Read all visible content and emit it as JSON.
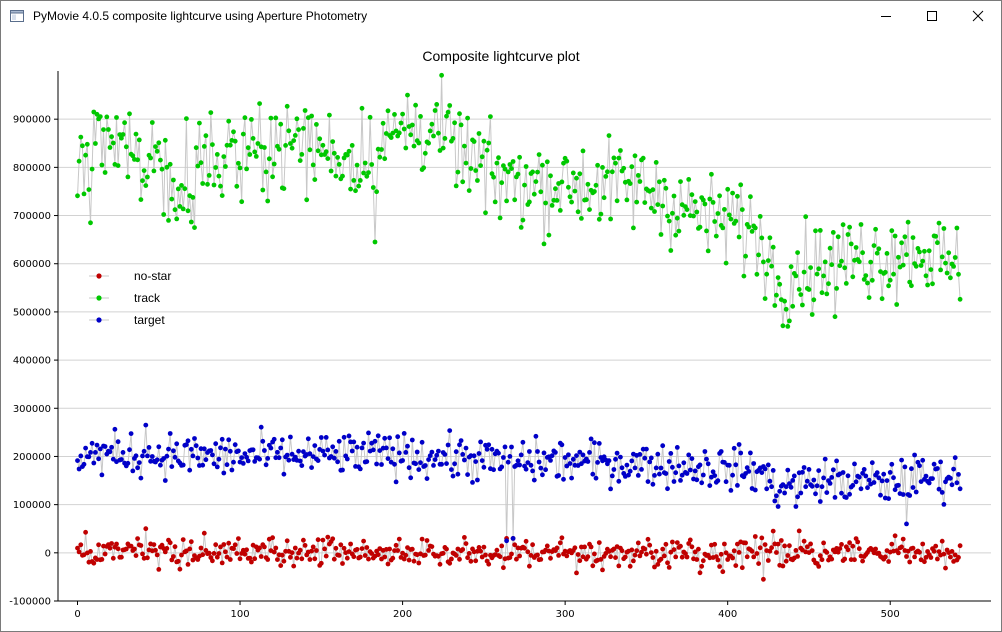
{
  "window": {
    "title": "PyMovie 4.0.5 composite lightcurve using Aperture Photometry",
    "icon": "app-window-icon"
  },
  "chart_data": {
    "type": "scatter",
    "title": "Composite lightcurve plot",
    "xlabel": "",
    "ylabel": "",
    "xlim": [
      -12,
      562
    ],
    "ylim": [
      -100000,
      1000000
    ],
    "x_ticks": [
      0,
      100,
      200,
      300,
      400,
      500
    ],
    "y_ticks": [
      -100000,
      0,
      100000,
      200000,
      300000,
      400000,
      500000,
      600000,
      700000,
      800000,
      900000
    ],
    "grid": "horizontal",
    "legend_position": "left",
    "n_points": 544,
    "series": [
      {
        "name": "no-star",
        "color": "#c00000",
        "anchors": [
          [
            0,
            0
          ],
          [
            100,
            0
          ],
          [
            200,
            0
          ],
          [
            300,
            0
          ],
          [
            400,
            0
          ],
          [
            500,
            0
          ],
          [
            543,
            0
          ]
        ],
        "scatter": 15000,
        "notable_points": [
          [
            42,
            50000
          ],
          [
            264,
            30000
          ],
          [
            268,
            30000
          ],
          [
            422,
            -55000
          ],
          [
            428,
            45000
          ]
        ]
      },
      {
        "name": "track",
        "color": "#00c800",
        "anchors": [
          [
            0,
            800000
          ],
          [
            20,
            845000
          ],
          [
            50,
            815000
          ],
          [
            60,
            770000
          ],
          [
            80,
            810000
          ],
          [
            100,
            840000
          ],
          [
            140,
            850000
          ],
          [
            170,
            815000
          ],
          [
            200,
            875000
          ],
          [
            220,
            880000
          ],
          [
            240,
            820000
          ],
          [
            250,
            790000
          ],
          [
            270,
            770000
          ],
          [
            290,
            765000
          ],
          [
            320,
            765000
          ],
          [
            350,
            760000
          ],
          [
            370,
            720000
          ],
          [
            390,
            690000
          ],
          [
            410,
            680000
          ],
          [
            420,
            650000
          ],
          [
            430,
            575000
          ],
          [
            450,
            590000
          ],
          [
            470,
            610000
          ],
          [
            500,
            620000
          ],
          [
            520,
            630000
          ],
          [
            543,
            580000
          ]
        ],
        "scatter": 45000,
        "notable_points": [
          [
            8,
            685000
          ],
          [
            10,
            915000
          ],
          [
            72,
            675000
          ],
          [
            183,
            645000
          ],
          [
            203,
            950000
          ],
          [
            406,
            740000
          ],
          [
            437,
            470000
          ],
          [
            466,
            490000
          ]
        ]
      },
      {
        "name": "target",
        "color": "#0000c8",
        "anchors": [
          [
            0,
            205000
          ],
          [
            100,
            200000
          ],
          [
            200,
            205000
          ],
          [
            260,
            190000
          ],
          [
            300,
            190000
          ],
          [
            350,
            185000
          ],
          [
            400,
            175000
          ],
          [
            420,
            170000
          ],
          [
            430,
            135000
          ],
          [
            460,
            150000
          ],
          [
            500,
            145000
          ],
          [
            510,
            155000
          ],
          [
            543,
            160000
          ]
        ],
        "scatter": 22000,
        "notable_points": [
          [
            42,
            265000
          ],
          [
            264,
            25000
          ],
          [
            268,
            30000
          ],
          [
            510,
            60000
          ]
        ]
      }
    ]
  }
}
